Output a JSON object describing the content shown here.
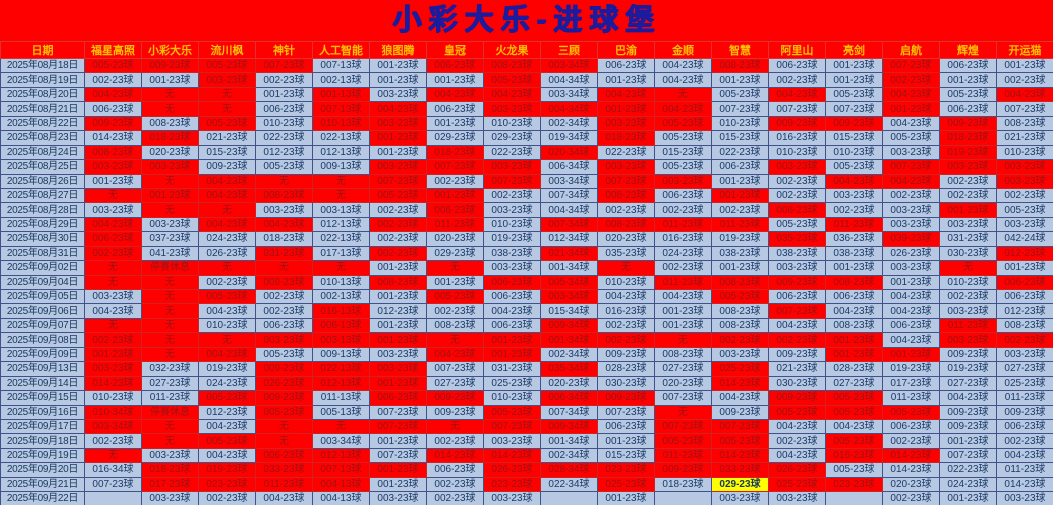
{
  "title": "小彩大乐-进球堡",
  "palette": {
    "page_bg": "#fe0000",
    "blue_cell_bg": "#b7c9e2",
    "yellow_cell_bg": "#ffff00",
    "header_text": "#ffc000",
    "title_text": "#1b1b9e",
    "red_cell_text": "#9c1212",
    "blue_cell_text": "#1b3a68"
  },
  "color_codes": {
    "R": "red",
    "B": "blue",
    "Y": "yellow"
  },
  "columns": [
    "日期",
    "福星高照",
    "小彩大乐",
    "流川枫",
    "神针",
    "人工智能",
    "狼图腾",
    "皇冠",
    "火龙果",
    "三顾",
    "巴渝",
    "金顺",
    "智慧",
    "阿里山",
    "亮剑",
    "启航",
    "辉煌",
    "开运猫"
  ],
  "rows": [
    {
      "date": "2025年08月18日",
      "colors": "RRRRBBRRRBBRBBRBB",
      "cells": [
        "005-23球",
        "009-23球",
        "005-23球",
        "007-23球",
        "007-13球",
        "001-23球",
        "006-23球",
        "008-23球",
        "003-34球",
        "006-23球",
        "004-23球",
        "008-23球",
        "006-23球",
        "001-23球",
        "007-23球",
        "006-23球",
        "001-23球"
      ]
    },
    {
      "date": "2025年08月19日",
      "colors": "BBRBBBBRBBBBBBRBB",
      "cells": [
        "002-23球",
        "001-23球",
        "003-23球",
        "002-23球",
        "002-13球",
        "001-23球",
        "001-23球",
        "005-23球",
        "004-34球",
        "001-23球",
        "004-23球",
        "001-23球",
        "002-23球",
        "001-23球",
        "002-23球",
        "001-23球",
        "002-23球"
      ]
    },
    {
      "date": "2025年08月20日",
      "colors": "RRRBRBRRBRRBRBRBR",
      "cells": [
        "004-23球",
        "无",
        "无",
        "001-23球",
        "001-13球",
        "003-23球",
        "004-23球",
        "004-23球",
        "003-34球",
        "004-23球",
        "无",
        "005-23球",
        "004-23球",
        "005-23球",
        "004-23球",
        "005-23球",
        "004-23球"
      ]
    },
    {
      "date": "2025年08月21日",
      "colors": "BRRBRRBRRRRBBBRBB",
      "cells": [
        "006-23球",
        "无",
        "无",
        "006-23球",
        "007-13球",
        "004-23球",
        "006-23球",
        "003-23球",
        "004-34球",
        "001-23球",
        "004-23球",
        "007-23球",
        "007-23球",
        "007-23球",
        "001-23球",
        "006-23球",
        "007-23球"
      ]
    },
    {
      "date": "2025年08月22日",
      "colors": "RBRBRRBBBRRBRRBRB",
      "cells": [
        "009-23球",
        "008-23球",
        "005-23球",
        "010-23球",
        "010-13球",
        "003-23球",
        "001-23球",
        "010-23球",
        "002-34球",
        "003-23球",
        "005-23球",
        "010-23球",
        "009-23球",
        "009-23球",
        "004-23球",
        "009-23球",
        "008-23球"
      ]
    },
    {
      "date": "2025年08月23日",
      "colors": "BRBBBRBBBRBBBBBRB",
      "cells": [
        "014-23球",
        "018-23球",
        "021-23球",
        "022-23球",
        "022-13球",
        "001-23球",
        "029-23球",
        "029-23球",
        "019-34球",
        "018-23球",
        "005-23球",
        "015-23球",
        "016-23球",
        "015-23球",
        "005-23球",
        "018-23球",
        "021-23球"
      ]
    },
    {
      "date": "2025年08月24日",
      "colors": "RBBBBBRBRBBBBBBRB",
      "cells": [
        "008-23球",
        "020-23球",
        "015-23球",
        "012-23球",
        "012-13球",
        "001-23球",
        "018-23球",
        "022-23球",
        "020-34球",
        "022-23球",
        "015-23球",
        "022-23球",
        "010-23球",
        "010-23球",
        "003-23球",
        "019-23球",
        "010-23球"
      ]
    },
    {
      "date": "2025年08月25日",
      "colors": "RRBBBRRRBRBBRBRRR",
      "cells": [
        "003-23球",
        "003-23球",
        "009-23球",
        "005-23球",
        "009-13球",
        "003-23球",
        "007-23球",
        "003-23球",
        "006-34球",
        "003-23球",
        "005-23球",
        "006-23球",
        "003-23球",
        "005-23球",
        "007-23球",
        "003-23球",
        "003-23球"
      ]
    },
    {
      "date": "2025年08月26日",
      "colors": "BRRRRRBRBRRBBRRBR",
      "cells": [
        "001-23球",
        "无",
        "004-23球",
        "无",
        "无",
        "007-23球",
        "002-23球",
        "007-23球",
        "003-34球",
        "007-23球",
        "003-23球",
        "001-23球",
        "002-23球",
        "004-23球",
        "004-23球",
        "002-23球",
        "003-23球"
      ]
    },
    {
      "date": "2025年08月27日",
      "colors": "RRRRRRRBBRBRBBBBB",
      "cells": [
        "无",
        "001-23球",
        "004-23球",
        "008-23球",
        "无",
        "005-23球",
        "001-23球",
        "002-23球",
        "007-34球",
        "008-23球",
        "006-23球",
        "001-23球",
        "002-23球",
        "003-23球",
        "002-23球",
        "002-23球",
        "002-23球"
      ]
    },
    {
      "date": "2025年08月28日",
      "colors": "BRRBBBRBBBBBRBBRB",
      "cells": [
        "003-23球",
        "无",
        "无",
        "003-23球",
        "003-13球",
        "002-23球",
        "006-23球",
        "003-23球",
        "004-34球",
        "002-23球",
        "002-23球",
        "002-23球",
        "006-23球",
        "002-23球",
        "003-23球",
        "001-23球",
        "005-23球"
      ]
    },
    {
      "date": "2025年08月29日",
      "colors": "RBRRBRRBRRRRBRBBB",
      "cells": [
        "004-23球",
        "003-23球",
        "004-23球",
        "004-23球",
        "012-13球",
        "002-23球",
        "011-23球",
        "010-23球",
        "007-34球",
        "008-23球",
        "011-23球",
        "011-23球",
        "005-23球",
        "011-23球",
        "003-23球",
        "003-23球",
        "003-23球"
      ]
    },
    {
      "date": "2025年08月30日",
      "colors": "RBBBBBBBBBBBRBRBB",
      "cells": [
        "006-23球",
        "037-23球",
        "024-23球",
        "018-23球",
        "022-13球",
        "002-23球",
        "020-23球",
        "019-23球",
        "012-34球",
        "020-23球",
        "016-23球",
        "019-23球",
        "035-23球",
        "036-23球",
        "039-23球",
        "031-23球",
        "042-24球"
      ]
    },
    {
      "date": "2025年08月31日",
      "colors": "RBBRBRBBRBBBBBBBR",
      "cells": [
        "002-23球",
        "041-23球",
        "026-23球",
        "031-23球",
        "017-13球",
        "002-23球",
        "029-23球",
        "038-23球",
        "021-34球",
        "035-23球",
        "024-23球",
        "038-23球",
        "038-23球",
        "038-23球",
        "026-23球",
        "030-23球",
        "012-23球"
      ]
    },
    {
      "date": "2025年09月02日",
      "colors": "RRRRRBRBBRBBBBBRB",
      "cells": [
        "无",
        "停赛休息",
        "无",
        "无",
        "无",
        "001-23球",
        "无",
        "003-23球",
        "001-34球",
        "无",
        "002-23球",
        "001-23球",
        "003-23球",
        "001-23球",
        "003-23球",
        "无",
        "001-23球"
      ]
    },
    {
      "date": "2025年09月04日",
      "colors": "RRBRBRBRRBRRRRBBR",
      "cells": [
        "无",
        "无",
        "002-23球",
        "009-23球",
        "010-13球",
        "008-23球",
        "001-23球",
        "006-23球",
        "005-34球",
        "010-23球",
        "011-23球",
        "008-23球",
        "009-23球",
        "008-23球",
        "001-23球",
        "010-23球",
        "006-23球"
      ]
    },
    {
      "date": "2025年09月05日",
      "colors": "BRRBBBRBRBBRBBBBB",
      "cells": [
        "003-23球",
        "无",
        "005-23球",
        "002-23球",
        "002-13球",
        "001-23球",
        "005-23球",
        "006-23球",
        "003-34球",
        "004-23球",
        "004-23球",
        "005-23球",
        "006-23球",
        "006-23球",
        "004-23球",
        "002-23球",
        "006-23球"
      ]
    },
    {
      "date": "2025年09月06日",
      "colors": "BRBBRBBBBBBBRBBBB",
      "cells": [
        "004-23球",
        "无",
        "004-23球",
        "002-23球",
        "016-13球",
        "012-23球",
        "002-23球",
        "004-23球",
        "015-34球",
        "016-23球",
        "001-23球",
        "008-23球",
        "007-23球",
        "004-23球",
        "004-23球",
        "003-23球",
        "012-23球"
      ]
    },
    {
      "date": "2025年09月07日",
      "colors": "RRBBRBBBRBBBBBBRB",
      "cells": [
        "无",
        "无",
        "010-23球",
        "006-23球",
        "006-13球",
        "001-23球",
        "008-23球",
        "006-23球",
        "009-34球",
        "002-23球",
        "001-23球",
        "008-23球",
        "004-23球",
        "008-23球",
        "006-23球",
        "011-23球",
        "008-23球"
      ]
    },
    {
      "date": "2025年09月08日",
      "colors": "RRRRRRRRRRRRRRBRR",
      "cells": [
        "002-23球",
        "无",
        "无",
        "003-23球",
        "003-13球",
        "001-23球",
        "无",
        "001-23球",
        "001-34球",
        "002-23球",
        "无",
        "002-23球",
        "002-23球",
        "001-23球",
        "004-23球",
        "003-23球",
        "002-23球"
      ]
    },
    {
      "date": "2025年09月09日",
      "colors": "RRRBBBRRBBBBBRRBB",
      "cells": [
        "001-23球",
        "无",
        "004-23球",
        "005-23球",
        "009-13球",
        "003-23球",
        "004-23球",
        "001-23球",
        "002-34球",
        "009-23球",
        "008-23球",
        "003-23球",
        "009-23球",
        "001-23球",
        "001-23球",
        "009-23球",
        "003-23球"
      ]
    },
    {
      "date": "2025年09月13日",
      "colors": "RBBRRRBBRBBRBBBBB",
      "cells": [
        "003-23球",
        "032-23球",
        "019-23球",
        "009-23球",
        "022-13球",
        "003-23球",
        "007-23球",
        "031-23球",
        "035-34球",
        "028-23球",
        "027-23球",
        "025-23球",
        "021-23球",
        "028-23球",
        "019-23球",
        "019-23球",
        "027-23球"
      ]
    },
    {
      "date": "2025年09月14日",
      "colors": "RBBRRRBBBBBRBBBBB",
      "cells": [
        "014-23球",
        "027-23球",
        "024-23球",
        "026-23球",
        "012-13球",
        "001-23球",
        "027-23球",
        "025-23球",
        "020-23球",
        "030-23球",
        "020-23球",
        "014-23球",
        "030-23球",
        "027-23球",
        "017-23球",
        "027-23球",
        "025-23球"
      ]
    },
    {
      "date": "2025年09月15日",
      "colors": "BBRRBRRBRRBBRRBBB",
      "cells": [
        "010-23球",
        "011-23球",
        "005-23球",
        "009-23球",
        "011-13球",
        "006-23球",
        "009-23球",
        "010-23球",
        "006-34球",
        "009-23球",
        "007-23球",
        "004-23球",
        "009-23球",
        "005-23球",
        "011-23球",
        "004-23球",
        "011-23球"
      ]
    },
    {
      "date": "2025年09月16日",
      "colors": "RRBRBBBRBBRBRRRBB",
      "cells": [
        "010-34球",
        "停赛休息",
        "012-23球",
        "005-23球",
        "005-13球",
        "007-23球",
        "009-23球",
        "005-23球",
        "007-34球",
        "007-23球",
        "无",
        "009-23球",
        "005-23球",
        "005-23球",
        "005-23球",
        "009-23球",
        "009-23球"
      ]
    },
    {
      "date": "2025年09月17日",
      "colors": "RRBRRRRRRBRRBBBBB",
      "cells": [
        "003-34球",
        "无",
        "004-23球",
        "无",
        "无",
        "007-23球",
        "无",
        "007-23球",
        "009-34球",
        "006-23球",
        "007-23球",
        "007-23球",
        "004-23球",
        "004-23球",
        "006-23球",
        "009-23球",
        "006-23球"
      ]
    },
    {
      "date": "2025年09月18日",
      "colors": "BRRRBBBBBBRRBRBBB",
      "cells": [
        "002-23球",
        "无",
        "005-23球",
        "无",
        "003-34球",
        "001-23球",
        "002-23球",
        "003-23球",
        "001-34球",
        "001-23球",
        "005-23球",
        "005-23球",
        "002-23球",
        "005-23球",
        "002-23球",
        "001-23球",
        "002-23球"
      ]
    },
    {
      "date": "2025年09月19日",
      "colors": "RBBRRBRRBBRRBRRBB",
      "cells": [
        "无",
        "003-23球",
        "004-23球",
        "006-23球",
        "012-13球",
        "007-23球",
        "014-23球",
        "014-23球",
        "002-34球",
        "015-23球",
        "011-23球",
        "014-23球",
        "004-23球",
        "016-23球",
        "014-23球",
        "007-23球",
        "004-23球"
      ]
    },
    {
      "date": "2025年09月20日",
      "colors": "BRRRRRBRRRRRRBBBB",
      "cells": [
        "016-34球",
        "018-23球",
        "019-23球",
        "033-23球",
        "007-13球",
        "001-23球",
        "006-23球",
        "026-23球",
        "028-34球",
        "023-23球",
        "009-23球",
        "033-23球",
        "026-23球",
        "005-23球",
        "014-23球",
        "022-23球",
        "011-23球"
      ]
    },
    {
      "date": "2025年09月21日",
      "colors": "BRRRRBBRBRBYRRBBB",
      "cells": [
        "007-23球",
        "017-23球",
        "023-23球",
        "011-23球",
        "004-13球",
        "001-23球",
        "002-23球",
        "023-23球",
        "022-34球",
        "025-23球",
        "018-23球",
        "029-23球",
        "025-23球",
        "023-23球",
        "020-23球",
        "024-23球",
        "014-23球"
      ]
    },
    {
      "date": "2025年09月22日",
      "colors": "BBBBBBBBBBBBBBBBB",
      "cells": [
        "",
        "003-23球",
        "002-23球",
        "004-23球",
        "004-13球",
        "003-23球",
        "002-23球",
        "003-23球",
        "",
        "001-23球",
        "",
        "003-23球",
        "003-23球",
        "",
        "002-23球",
        "001-23球",
        "003-23球"
      ]
    }
  ]
}
